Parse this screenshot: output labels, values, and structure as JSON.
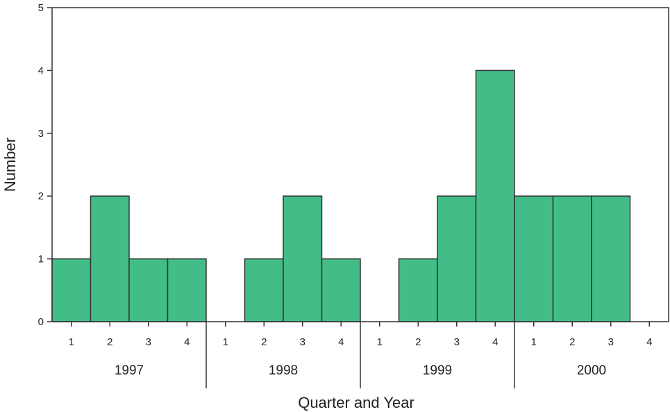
{
  "chart_data": {
    "type": "bar",
    "title": "",
    "xlabel": "Quarter and Year",
    "ylabel": "Number",
    "ylim": [
      0,
      5
    ],
    "yticks": [
      "0",
      "1",
      "2",
      "3",
      "4",
      "5"
    ],
    "years": [
      "1997",
      "1998",
      "1999",
      "2000"
    ],
    "quarter_labels": [
      "1",
      "2",
      "3",
      "4"
    ],
    "categories": [
      "1997 Q1",
      "1997 Q2",
      "1997 Q3",
      "1997 Q4",
      "1998 Q1",
      "1998 Q2",
      "1998 Q3",
      "1998 Q4",
      "1999 Q1",
      "1999 Q2",
      "1999 Q3",
      "1999 Q4",
      "2000 Q1",
      "2000 Q2",
      "2000 Q3",
      "2000 Q4"
    ],
    "values": [
      1,
      2,
      1,
      1,
      0,
      1,
      2,
      1,
      0,
      1,
      2,
      4,
      2,
      2,
      2,
      0
    ],
    "bar_color": "#43bd87",
    "bar_edge_color": "#333333",
    "grid": false,
    "legend": "none"
  }
}
